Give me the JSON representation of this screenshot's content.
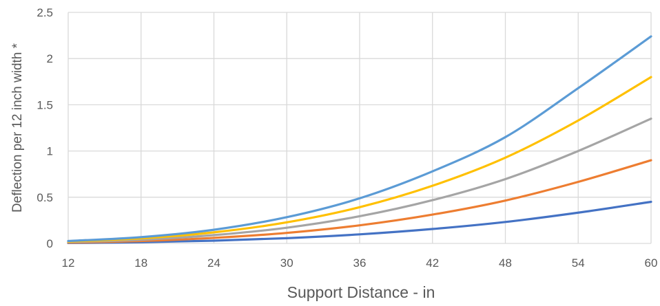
{
  "chart_data": {
    "type": "line",
    "title": "",
    "xlabel": "Support Distance - in",
    "ylabel": "Deflection per 12 inch width *",
    "xlim": [
      12,
      60
    ],
    "ylim": [
      0,
      2.5
    ],
    "x_ticks": [
      12,
      18,
      24,
      30,
      36,
      42,
      48,
      54,
      60
    ],
    "y_ticks": [
      0,
      0.5,
      1,
      1.5,
      2,
      2.5
    ],
    "y_tick_labels": [
      "0",
      "0.5",
      "1",
      "1.5",
      "2",
      "2.5"
    ],
    "grid": true,
    "legend": "none",
    "x": [
      12,
      18,
      24,
      30,
      36,
      42,
      48,
      54,
      60
    ],
    "series": [
      {
        "color": "#5b9bd5",
        "values": [
          0.026,
          0.068,
          0.148,
          0.284,
          0.488,
          0.78,
          1.15,
          1.68,
          2.24
        ]
      },
      {
        "color": "#ffc000",
        "values": [
          0.02,
          0.055,
          0.12,
          0.228,
          0.392,
          0.624,
          0.928,
          1.33,
          1.8
        ]
      },
      {
        "color": "#a5a5a5",
        "values": [
          0.014,
          0.04,
          0.09,
          0.17,
          0.294,
          0.468,
          0.696,
          1.0,
          1.35
        ]
      },
      {
        "color": "#ed7d31",
        "values": [
          0.008,
          0.026,
          0.06,
          0.114,
          0.196,
          0.312,
          0.464,
          0.666,
          0.9
        ]
      },
      {
        "color": "#4472c4",
        "values": [
          0.004,
          0.013,
          0.03,
          0.057,
          0.098,
          0.156,
          0.232,
          0.333,
          0.45
        ]
      }
    ]
  }
}
